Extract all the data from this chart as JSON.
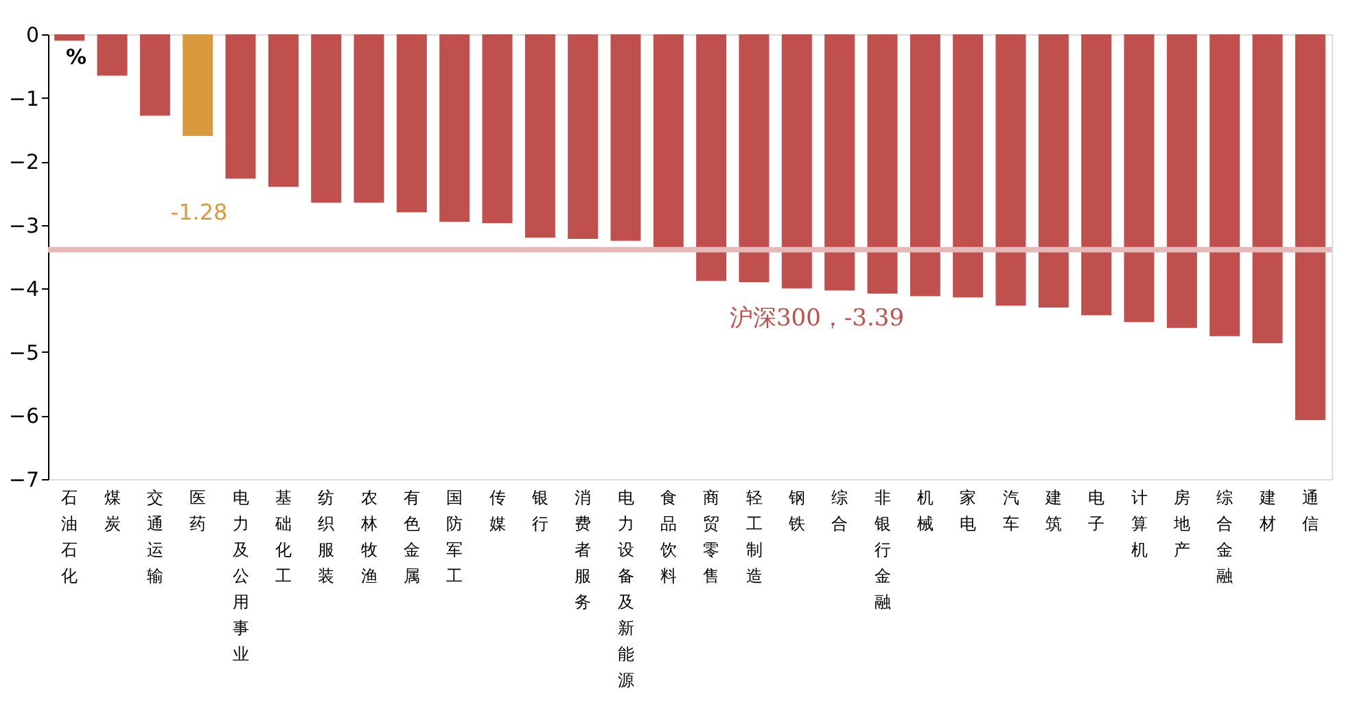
{
  "chart_data": {
    "type": "bar",
    "ylabel": "%",
    "categories": [
      "石油石化",
      "煤炭",
      "交通运输",
      "医药",
      "电力及公用事业",
      "基础化工",
      "纺织服装",
      "农林牧渔",
      "有色金属",
      "国防军工",
      "传媒",
      "银行",
      "消费者服务",
      "电力设备及新能源",
      "食品饮料",
      "商贸零售",
      "轻工制造",
      "钢铁",
      "综合",
      "非银行金融",
      "机械",
      "家电",
      "汽车",
      "建筑",
      "电子",
      "计算机",
      "房地产",
      "综合金融",
      "建材",
      "通信"
    ],
    "values": [
      -0.1,
      -0.65,
      -1.28,
      -1.6,
      -2.27,
      -2.4,
      -2.65,
      -2.65,
      -2.8,
      -2.95,
      -2.97,
      -3.2,
      -3.22,
      -3.25,
      -3.35,
      -3.88,
      -3.9,
      -4.0,
      -4.03,
      -4.08,
      -4.12,
      -4.14,
      -4.27,
      -4.3,
      -4.42,
      -4.53,
      -4.62,
      -4.75,
      -4.86,
      -6.07
    ],
    "colors": [
      "#c0504d",
      "#c0504d",
      "#c0504d",
      "#d99a3e",
      "#c0504d",
      "#c0504d",
      "#c0504d",
      "#c0504d",
      "#c0504d",
      "#c0504d",
      "#c0504d",
      "#c0504d",
      "#c0504d",
      "#c0504d",
      "#c0504d",
      "#c0504d",
      "#c0504d",
      "#c0504d",
      "#c0504d",
      "#c0504d",
      "#c0504d",
      "#c0504d",
      "#c0504d",
      "#c0504d",
      "#c0504d",
      "#c0504d",
      "#c0504d",
      "#c0504d",
      "#c0504d",
      "#c0504d"
    ],
    "ylim": [
      -7,
      0
    ],
    "yticks": [
      0,
      -1,
      -2,
      -3,
      -4,
      -5,
      -6,
      -7
    ],
    "grid": false,
    "ref_lines": [
      {
        "axis": "y",
        "value": -3.39,
        "label": "沪深300，-3.39",
        "color": "#e6b8b7"
      }
    ],
    "annotations": [
      "-1.28"
    ]
  }
}
